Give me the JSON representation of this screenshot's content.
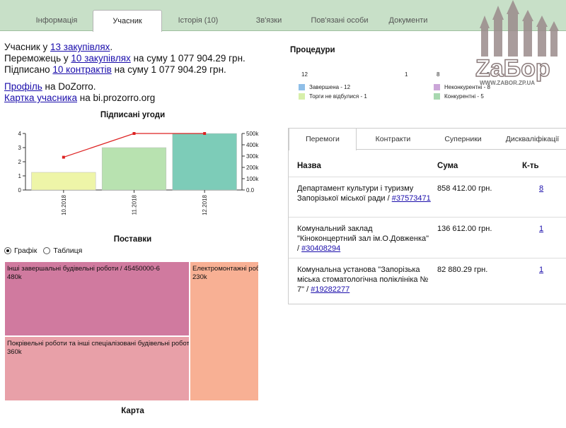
{
  "tabs": [
    {
      "label": "Інформація"
    },
    {
      "label": "Учасник"
    },
    {
      "label": "Історія (10)"
    },
    {
      "label": "Зв'язки"
    },
    {
      "label": "Пов'язані особи"
    },
    {
      "label": "Документи"
    }
  ],
  "summary": {
    "line1_prefix": "Учасник у ",
    "line1_link": "13 закупівлях",
    "line1_suffix": ".",
    "line2_prefix": "Переможець у ",
    "line2_link": "10 закупівлях",
    "line2_suffix": " на суму 1 077 904.29 грн.",
    "line3_prefix": "Підписано ",
    "line3_link": "10 контрактів",
    "line3_suffix": " на суму 1 077 904.29 грн.",
    "profile_link": "Профіль",
    "profile_suffix": " на DoZorro.",
    "card_link": "Картка учасника",
    "card_suffix": " на bi.prozorro.org"
  },
  "signed_title": "Підписані угоди",
  "chart_data": {
    "type": "bar",
    "title": "Підписані угоди",
    "categories": [
      "10.2018",
      "11.2018",
      "12.2018"
    ],
    "series": [
      {
        "values": [
          1.25,
          3,
          4
        ],
        "colors": [
          "#eef5a8",
          "#b8e2b0",
          "#7dccb8"
        ]
      },
      {
        "values": [
          290000,
          500000,
          500000
        ],
        "color": "#dd2222"
      }
    ],
    "y_left": {
      "ticks": [
        "0",
        "1",
        "2",
        "3",
        "4"
      ],
      "lim": [
        0,
        4
      ]
    },
    "y_right": {
      "ticks": [
        "0.0",
        "100k",
        "200k",
        "300k",
        "400k",
        "500k"
      ],
      "lim": [
        0,
        500000
      ]
    }
  },
  "procedures": {
    "title": "Процедури",
    "bar1": [
      {
        "value": "12",
        "color": "#8fbfe8"
      },
      {
        "value": "1",
        "color": "#d7efaa"
      }
    ],
    "bar2": [
      {
        "value": "8",
        "color": "#cba6d8"
      },
      {
        "value": "5",
        "color": "#a8d8b0"
      }
    ],
    "legend": [
      {
        "label": "Завершена - 12",
        "color": "#8fbfe8"
      },
      {
        "label": "Торги не відбулися - 1",
        "color": "#d7efaa"
      },
      {
        "label": "Неконкурентні - 8",
        "color": "#cba6d8"
      },
      {
        "label": "Конкурентні - 5",
        "color": "#a8d8b0"
      }
    ]
  },
  "panel": {
    "tabs": [
      {
        "label": "Перемоги"
      },
      {
        "label": "Контракти"
      },
      {
        "label": "Суперники"
      },
      {
        "label": "Дискваліфікації"
      }
    ],
    "headers": {
      "name": "Назва",
      "sum": "Сума",
      "count": "К-ть"
    },
    "rows": [
      {
        "name": "Департамент культури і туризму Запорізької міської ради / ",
        "code": "#37573471",
        "sum": "858 412.00 грн.",
        "count": "8"
      },
      {
        "name": "Комунальний заклад \"Кіноконцертний зал ім.О.Довженка\" / ",
        "code": "#30408294",
        "sum": "136 612.00 грн.",
        "count": "1"
      },
      {
        "name": "Комунальна установа \"Запорізька міська стоматологічна поліклініка № 7\" / ",
        "code": "#19282277",
        "sum": "82 880.29 грн.",
        "count": "1"
      }
    ]
  },
  "supplies": {
    "title": "Поставки",
    "radio_graph": "Графік",
    "radio_table": "Таблиця",
    "treemap": [
      {
        "label": "Інші завершальні будівельні роботи / 45450000-6",
        "value": "480k",
        "color": "#d07a9f"
      },
      {
        "label": "Покрівельні роботи та інші спеціалізовані будівельні роботи",
        "value": "360k",
        "color": "#e8a0a8"
      },
      {
        "label": "Електромонтажні роботи",
        "value": "230k",
        "color": "#f8b094"
      }
    ]
  },
  "map_title": "Карта",
  "watermark": {
    "brand": "ZaБор",
    "url": "WWW.ZABOR.ZP.UA"
  }
}
